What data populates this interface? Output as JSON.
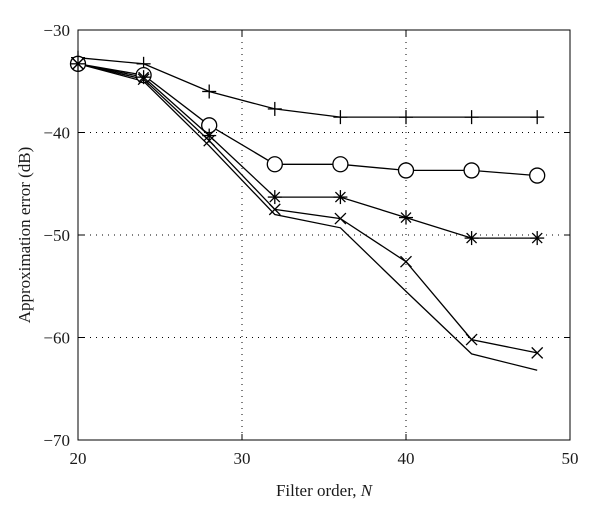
{
  "chart_data": {
    "type": "line",
    "xlabel": "Filter order, ",
    "xlabel_var": "N",
    "ylabel": "Approximation error (dB)",
    "xlim": [
      20,
      50
    ],
    "ylim": [
      -70,
      -30
    ],
    "x_ticks": [
      20,
      30,
      40,
      50
    ],
    "y_ticks": [
      -30,
      -40,
      -50,
      -60,
      -70
    ],
    "x_tick_labels": [
      "20",
      "30",
      "40",
      "50"
    ],
    "y_tick_labels": [
      "−30",
      "−40",
      "−50",
      "−60",
      "−70"
    ],
    "grid": true,
    "legend": "none",
    "line_color": "#000000",
    "series": [
      {
        "marker": "plus",
        "x": [
          20,
          24,
          28,
          32,
          36,
          40,
          44,
          48
        ],
        "y": [
          -32.7,
          -33.3,
          -36.0,
          -37.7,
          -38.5,
          -38.5,
          -38.5,
          -38.5
        ]
      },
      {
        "marker": "circle",
        "x": [
          20,
          24,
          28,
          32,
          36,
          40,
          44,
          48
        ],
        "y": [
          -33.3,
          -34.4,
          -39.3,
          -43.1,
          -43.1,
          -43.7,
          -43.7,
          -44.2
        ]
      },
      {
        "marker": "star",
        "x": [
          20,
          24,
          28,
          32,
          36,
          40,
          44,
          48
        ],
        "y": [
          -33.3,
          -34.6,
          -40.3,
          -46.3,
          -46.3,
          -48.3,
          -50.3,
          -50.3
        ]
      },
      {
        "marker": "x",
        "x": [
          20,
          24,
          28,
          32,
          36,
          40,
          44,
          48
        ],
        "y": [
          -33.3,
          -34.8,
          -40.8,
          -47.5,
          -48.4,
          -52.6,
          -60.2,
          -61.5
        ]
      },
      {
        "marker": "none",
        "x": [
          20,
          24,
          28,
          32,
          36,
          40,
          44,
          48
        ],
        "y": [
          -33.3,
          -35.0,
          -41.3,
          -48.0,
          -49.3,
          -55.5,
          -61.6,
          -63.2
        ]
      }
    ]
  }
}
